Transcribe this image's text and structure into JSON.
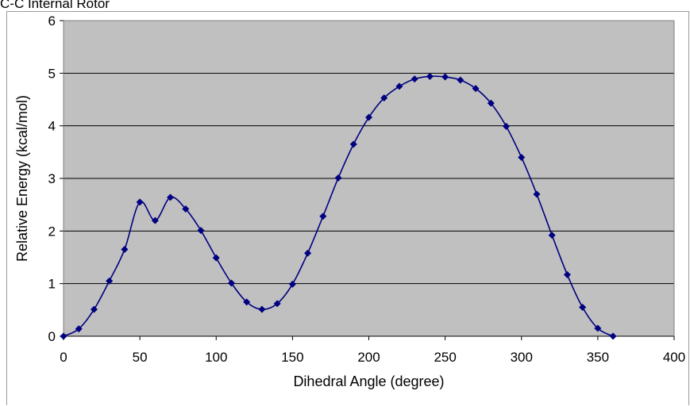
{
  "chart_data": {
    "type": "line",
    "title": "C-C Internal Rotor",
    "xlabel": "Dihedral Angle (degree)",
    "ylabel": "Relative Energy (kcal/mol)",
    "xlim": [
      0,
      400
    ],
    "ylim": [
      0,
      6
    ],
    "x_ticks": [
      "0",
      "50",
      "100",
      "150",
      "200",
      "250",
      "300",
      "350",
      "400"
    ],
    "y_ticks": [
      "0",
      "1",
      "2",
      "3",
      "4",
      "5",
      "6"
    ],
    "grid": "horizontal",
    "plot_background": "#c0c0c0",
    "series_color": "#000080",
    "marker": "diamond",
    "series": [
      {
        "x": [
          0,
          10,
          20,
          30,
          40,
          50,
          60,
          70,
          80,
          90,
          100,
          110,
          120,
          130,
          140,
          150,
          160,
          170,
          180,
          190,
          200,
          210,
          220,
          230,
          240,
          250,
          260,
          270,
          280,
          290,
          300,
          310,
          320,
          330,
          340,
          350,
          360
        ],
        "values": [
          0,
          0.14,
          0.51,
          1.05,
          1.65,
          2.55,
          2.2,
          2.64,
          2.42,
          2.01,
          1.49,
          1.01,
          0.65,
          0.51,
          0.62,
          0.99,
          1.58,
          2.28,
          3.01,
          3.65,
          4.16,
          4.53,
          4.75,
          4.89,
          4.94,
          4.93,
          4.87,
          4.71,
          4.43,
          3.99,
          3.4,
          2.7,
          1.92,
          1.17,
          0.55,
          0.15,
          0
        ]
      }
    ]
  }
}
